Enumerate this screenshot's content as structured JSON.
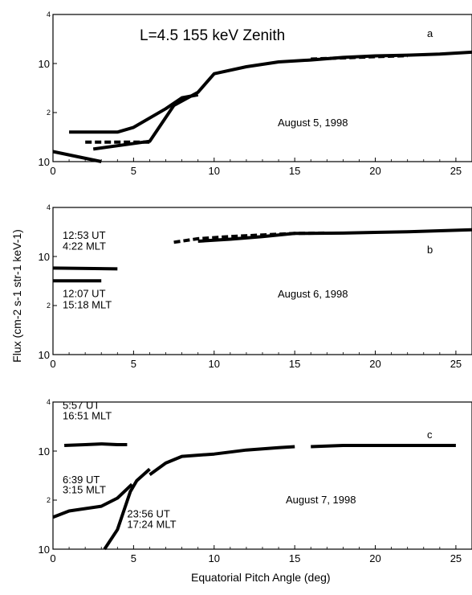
{
  "figure": {
    "xlabel": "Equatorial Pitch Angle  (deg)",
    "ylabel": "Flux (cm-2 s-1 str-1 keV-1)"
  },
  "chart_data": [
    {
      "type": "line",
      "panel_label": "a",
      "title": "L=4.5   155 keV   Zenith",
      "date": "August 5, 1998",
      "xlim": [
        0,
        26
      ],
      "ylim": [
        10,
        10000
      ],
      "yscale": "log",
      "x_ticks": [
        "0",
        "5",
        "10",
        "15",
        "20",
        "25"
      ],
      "y_ticks": [
        {
          "value": 10,
          "base": "10",
          "exp": ""
        },
        {
          "value": 100,
          "base": "",
          "exp": "2"
        },
        {
          "value": 1000,
          "base": "10",
          "exp": ""
        },
        {
          "value": 10000,
          "base": "",
          "exp": "4"
        }
      ],
      "series": [
        {
          "style": "solid",
          "points": [
            [
              0,
              16
            ],
            [
              3,
              10
            ]
          ]
        },
        {
          "style": "solid",
          "points": [
            [
              1,
              40
            ],
            [
              4,
              40
            ],
            [
              5,
              50
            ],
            [
              7,
              120
            ],
            [
              8,
              200
            ],
            [
              9,
              230
            ]
          ]
        },
        {
          "style": "solid",
          "points": [
            [
              2.5,
              18
            ],
            [
              6,
              26
            ],
            [
              7.5,
              140
            ],
            [
              9,
              260
            ],
            [
              10,
              620
            ],
            [
              12,
              860
            ],
            [
              14,
              1080
            ],
            [
              16,
              1180
            ],
            [
              18,
              1330
            ],
            [
              20,
              1430
            ],
            [
              22,
              1480
            ],
            [
              24,
              1560
            ],
            [
              26,
              1700
            ]
          ]
        },
        {
          "style": "dashed",
          "points": [
            [
              2,
              25
            ],
            [
              6,
              25
            ]
          ]
        },
        {
          "style": "dashed",
          "points": [
            [
              16,
              1230
            ],
            [
              18,
              1300
            ],
            [
              20,
              1380
            ],
            [
              22,
              1440
            ]
          ]
        }
      ]
    },
    {
      "type": "line",
      "panel_label": "b",
      "date": "August 6, 1998",
      "xlim": [
        0,
        26
      ],
      "ylim": [
        10,
        10000
      ],
      "yscale": "log",
      "x_ticks": [
        "0",
        "5",
        "10",
        "15",
        "20",
        "25"
      ],
      "y_ticks": [
        {
          "value": 10,
          "base": "10",
          "exp": ""
        },
        {
          "value": 100,
          "base": "",
          "exp": "2"
        },
        {
          "value": 1000,
          "base": "10",
          "exp": ""
        },
        {
          "value": 10000,
          "base": "",
          "exp": "4"
        }
      ],
      "annotations": [
        {
          "text": "12:53 UT",
          "x": 0.6,
          "y": 2300
        },
        {
          "text": "4:22 MLT",
          "x": 0.6,
          "y": 1380
        },
        {
          "text": "12:07 UT",
          "x": 0.6,
          "y": 150
        },
        {
          "text": "15:18 MLT",
          "x": 0.6,
          "y": 88
        }
      ],
      "series": [
        {
          "style": "solid",
          "points": [
            [
              0,
              580
            ],
            [
              4,
              560
            ]
          ]
        },
        {
          "style": "solid",
          "points": [
            [
              0,
              320
            ],
            [
              3,
              320
            ]
          ]
        },
        {
          "style": "dashed",
          "points": [
            [
              7.5,
              1950
            ],
            [
              9,
              2300
            ],
            [
              11,
              2550
            ],
            [
              13,
              2750
            ],
            [
              15,
              2950
            ],
            [
              17,
              3000
            ]
          ]
        },
        {
          "style": "solid",
          "points": [
            [
              9,
              2050
            ],
            [
              11,
              2250
            ],
            [
              13,
              2550
            ],
            [
              15,
              2950
            ],
            [
              18,
              3000
            ],
            [
              20,
              3100
            ],
            [
              22,
              3200
            ],
            [
              24,
              3350
            ],
            [
              26,
              3500
            ]
          ]
        }
      ]
    },
    {
      "type": "line",
      "panel_label": "c",
      "date": "August 7, 1998",
      "xlim": [
        0,
        26
      ],
      "ylim": [
        10,
        10000
      ],
      "yscale": "log",
      "x_ticks": [
        "0",
        "5",
        "10",
        "15",
        "20",
        "25"
      ],
      "y_ticks": [
        {
          "value": 10,
          "base": "10",
          "exp": ""
        },
        {
          "value": 100,
          "base": "",
          "exp": "2"
        },
        {
          "value": 1000,
          "base": "10",
          "exp": ""
        },
        {
          "value": 10000,
          "base": "",
          "exp": "4"
        }
      ],
      "annotations": [
        {
          "text": "5:57 UT",
          "x": 0.6,
          "y": 7200
        },
        {
          "text": "16:51 MLT",
          "x": 0.6,
          "y": 4400
        },
        {
          "text": "6:39 UT",
          "x": 0.6,
          "y": 220
        },
        {
          "text": "3:15 MLT",
          "x": 0.6,
          "y": 138
        },
        {
          "text": "23:56 UT",
          "x": 4.6,
          "y": 44
        },
        {
          "text": "17:24 MLT",
          "x": 4.6,
          "y": 27
        }
      ],
      "series": [
        {
          "style": "solid",
          "points": [
            [
              0.7,
              1300
            ],
            [
              2,
              1350
            ],
            [
              3,
              1400
            ],
            [
              4,
              1350
            ],
            [
              4.6,
              1350
            ]
          ]
        },
        {
          "style": "solid",
          "points": [
            [
              0,
              45
            ],
            [
              1,
              60
            ],
            [
              3,
              75
            ],
            [
              4,
              110
            ],
            [
              4.9,
              210
            ]
          ]
        },
        {
          "style": "solid",
          "points": [
            [
              3.2,
              10
            ],
            [
              4,
              25
            ],
            [
              4.8,
              150
            ],
            [
              5.2,
              250
            ],
            [
              6,
              430
            ]
          ]
        },
        {
          "style": "solid",
          "points": [
            [
              6,
              330
            ],
            [
              7,
              570
            ],
            [
              8,
              780
            ],
            [
              10,
              870
            ],
            [
              12,
              1050
            ],
            [
              14,
              1170
            ],
            [
              15,
              1230
            ]
          ]
        },
        {
          "style": "solid",
          "points": [
            [
              16,
              1230
            ],
            [
              18,
              1300
            ],
            [
              20,
              1300
            ],
            [
              22,
              1300
            ],
            [
              25,
              1300
            ]
          ]
        }
      ]
    }
  ]
}
